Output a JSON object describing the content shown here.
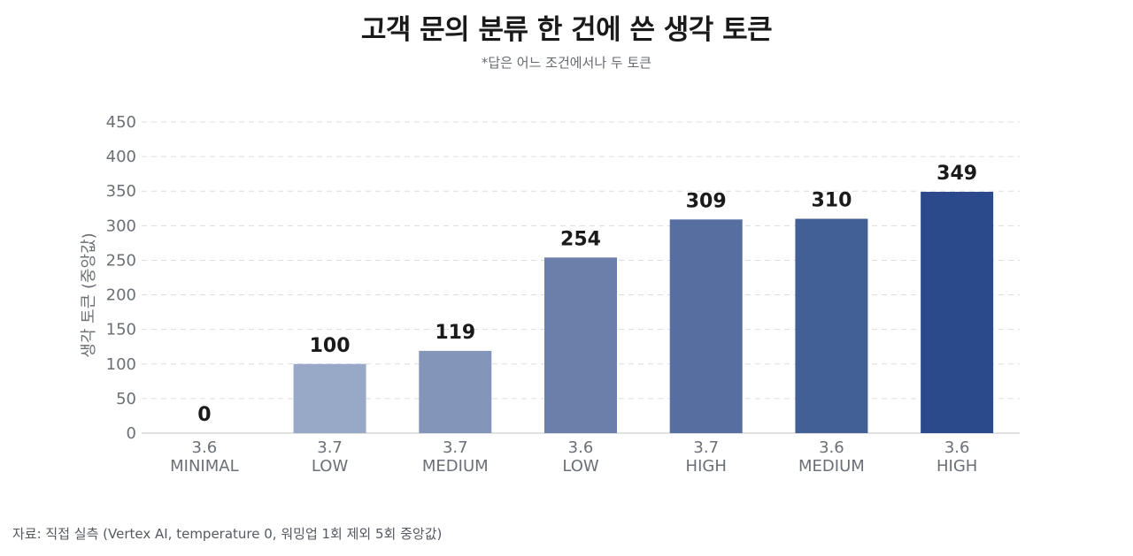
{
  "title": "고객 문의 분류 한 건에 쓴 생각 토큰",
  "subtitle": "*답은 어느 조건에서나 두 토큰",
  "source": "자료: 직접 실측 (Vertex AI, temperature 0, 워밍업 1회 제외 5회 중앙값)",
  "chart_data": {
    "type": "bar",
    "categories": [
      [
        "3.6",
        "MINIMAL"
      ],
      [
        "3.7",
        "LOW"
      ],
      [
        "3.7",
        "MEDIUM"
      ],
      [
        "3.6",
        "LOW"
      ],
      [
        "3.7",
        "HIGH"
      ],
      [
        "3.6",
        "MEDIUM"
      ],
      [
        "3.6",
        "HIGH"
      ]
    ],
    "values": [
      0,
      100,
      119,
      254,
      309,
      310,
      349
    ],
    "data_labels": [
      "0",
      "100",
      "119",
      "254",
      "309",
      "310",
      "349"
    ],
    "bar_colors": [
      "#c5cfe0",
      "#98a9c8",
      "#8396ba",
      "#6a80ab",
      "#566fa0",
      "#425f96",
      "#2b4a8b"
    ],
    "ylabel": "생각 토큰 (중앙값)",
    "ylim": [
      0,
      450
    ],
    "yticks": [
      0,
      50,
      100,
      150,
      200,
      250,
      300,
      350,
      400,
      450
    ],
    "grid": true,
    "grid_color": "#d9dde3"
  }
}
